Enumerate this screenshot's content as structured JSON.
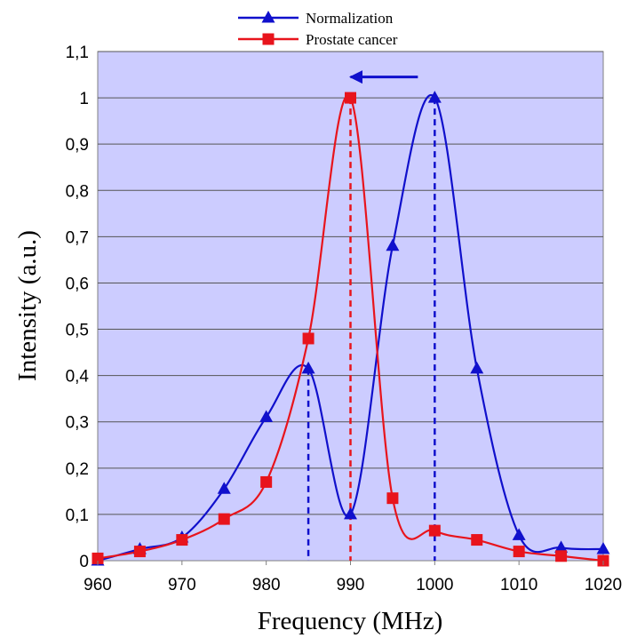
{
  "chart_data": {
    "type": "line",
    "xlabel": "Frequency (MHz)",
    "ylabel": "Intensity (a.u.)",
    "xlim": [
      960,
      1020
    ],
    "ylim": [
      0,
      1.1
    ],
    "x_ticks": [
      "960",
      "970",
      "980",
      "990",
      "1000",
      "1010",
      "1020"
    ],
    "y_ticks": [
      "0",
      "0,1",
      "0,2",
      "0,3",
      "0,4",
      "0,5",
      "0,6",
      "0,7",
      "0,8",
      "0,9",
      "1",
      "1,1"
    ],
    "highlighted_x_tick": "990",
    "highlight_color": "#c0392b",
    "grid": "horizontal",
    "legend_position": "top",
    "plot_background": "#ccccff",
    "series": [
      {
        "name": "Normalization",
        "color": "#1010cc",
        "marker": "triangle",
        "x": [
          960,
          965,
          970,
          975,
          980,
          985,
          990,
          995,
          1000,
          1005,
          1010,
          1015,
          1020
        ],
        "y": [
          0.0,
          0.025,
          0.05,
          0.155,
          0.31,
          0.415,
          0.1,
          0.68,
          1.0,
          0.415,
          0.055,
          0.028,
          0.025
        ]
      },
      {
        "name": "Prostate cancer",
        "color": "#e8141c",
        "marker": "square",
        "x": [
          960,
          965,
          970,
          975,
          980,
          985,
          990,
          995,
          1000,
          1005,
          1010,
          1015,
          1020
        ],
        "y": [
          0.005,
          0.02,
          0.045,
          0.09,
          0.17,
          0.48,
          1.0,
          0.135,
          0.065,
          0.045,
          0.02,
          0.01,
          0.0
        ]
      }
    ],
    "reference_lines": [
      {
        "x": 985,
        "y": 0.415,
        "color": "#1010cc"
      },
      {
        "x": 990,
        "y": 1.0,
        "color": "#e8141c"
      },
      {
        "x": 1000,
        "y": 1.0,
        "color": "#1010cc"
      }
    ],
    "arrow": {
      "from": [
        998,
        1.045
      ],
      "to": [
        990,
        1.045
      ],
      "color": "#1010cc"
    }
  }
}
